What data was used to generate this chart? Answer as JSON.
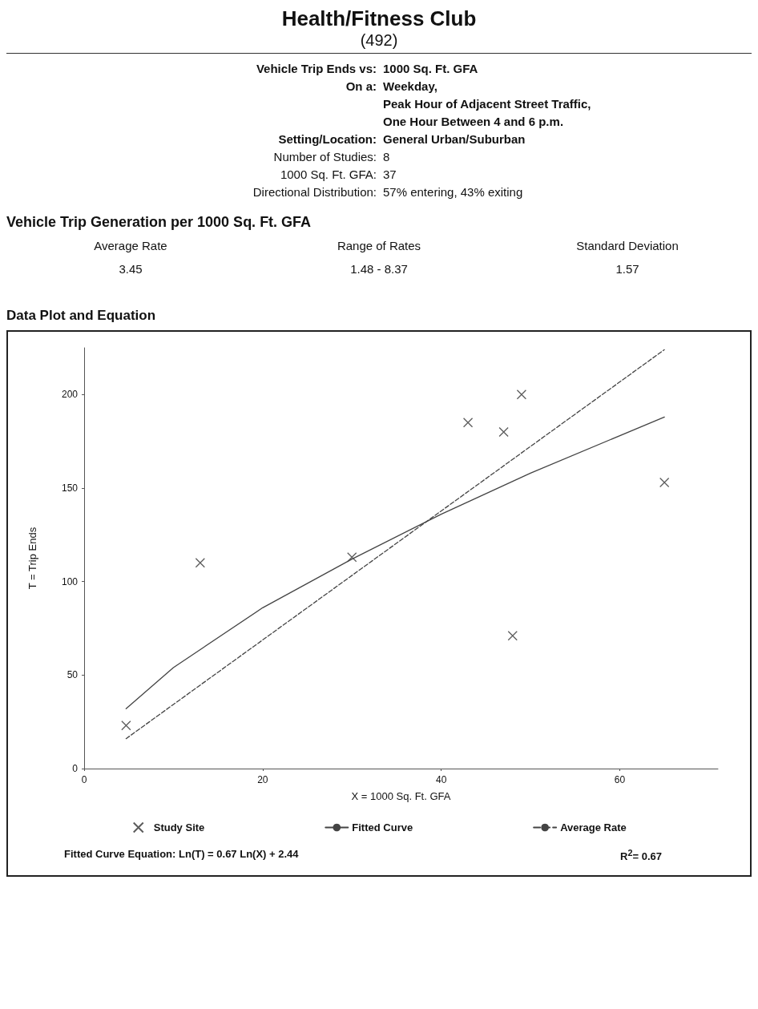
{
  "chart_data": {
    "type": "scatter",
    "title": "Health/Fitness Club",
    "subtitle": "(492)",
    "xlabel": "X = 1000 Sq. Ft. GFA",
    "ylabel": "T = Trip Ends",
    "xlim": [
      0,
      71
    ],
    "xticks": [
      0,
      20,
      40,
      60
    ],
    "ylim": [
      0,
      225
    ],
    "yticks": [
      0,
      50,
      100,
      150,
      200
    ],
    "grid": false,
    "legend": "bottom",
    "marker": "cross",
    "series": [
      {
        "name": "Study Site",
        "color": "#333333",
        "x": [
          4.7,
          13,
          30,
          43,
          47,
          48,
          49,
          65
        ],
        "values": [
          23,
          110,
          113,
          185,
          180,
          71,
          200,
          153
        ]
      },
      {
        "name": "Fitted Curve",
        "type": "line",
        "color": "#444444",
        "line_style": "solid",
        "marker": "none",
        "x": [
          4.7,
          10,
          20,
          30,
          40,
          50,
          65
        ],
        "values": [
          32,
          54,
          86,
          112,
          136,
          158,
          188
        ]
      },
      {
        "name": "Average Rate",
        "type": "line",
        "color": "#444444",
        "line_style": "dashed",
        "marker": "none",
        "x": [
          4.7,
          65
        ],
        "values": [
          16,
          224
        ]
      }
    ],
    "annotations": [
      "Vehicle Trip Ends vs:",
      "1000 Sq. Ft. GFA",
      "On a:",
      "Weekday,",
      "Peak Hour of Adjacent Street Traffic,",
      "One Hour Between 4 and 6 p.m.",
      "Setting/Location:",
      "General Urban/Suburban",
      "Number of Studies:",
      "8",
      "1000 Sq. Ft. GFA:",
      "37",
      "Directional Distribution:",
      "57% entering, 43% exiting",
      "Vehicle Trip Generation per 1000 Sq. Ft. GFA",
      "Average Rate",
      "Range of Rates",
      "Standard Deviation",
      "3.45",
      "1.48 - 8.37",
      "1.57",
      "Data Plot and Equation",
      "Fitted Curve Equation: Ln(T) = 0.67 Ln(X) + 2.44",
      "R$^{2}$= 0.67"
    ]
  }
}
